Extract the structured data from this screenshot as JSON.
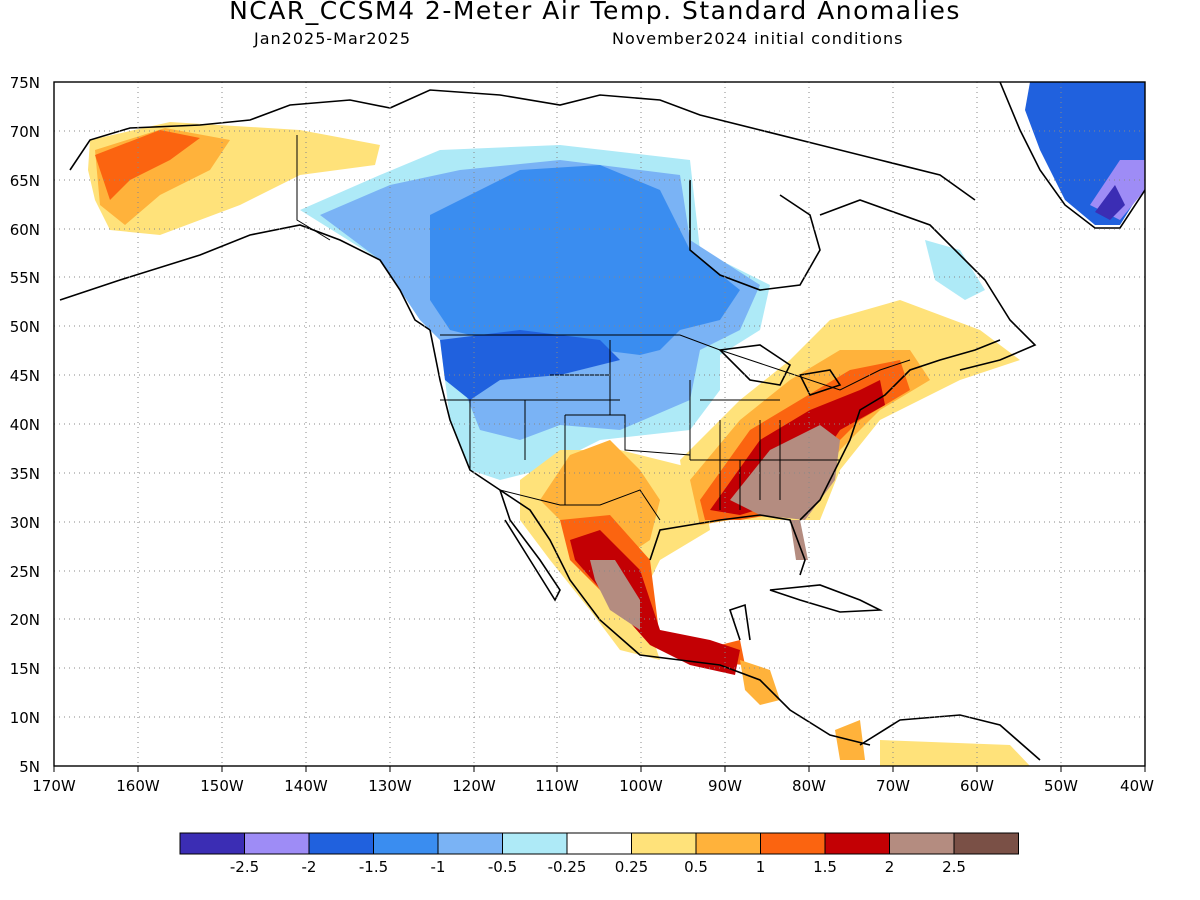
{
  "title": "NCAR_CCSM4 2-Meter Air Temp. Standard Anomalies",
  "subtitle_left": "Jan2025-Mar2025",
  "subtitle_right": "November2024 initial conditions",
  "lat_labels": [
    "75N",
    "70N",
    "65N",
    "60N",
    "55N",
    "50N",
    "45N",
    "40N",
    "35N",
    "30N",
    "25N",
    "20N",
    "15N",
    "10N",
    "5N"
  ],
  "lon_labels": [
    "170W",
    "160W",
    "150W",
    "140W",
    "130W",
    "120W",
    "110W",
    "100W",
    "90W",
    "80W",
    "70W",
    "60W",
    "50W",
    "40W"
  ],
  "colorbar": {
    "colors": [
      "#3b2db4",
      "#9e8cf6",
      "#2061de",
      "#3a8df0",
      "#7ab3f5",
      "#aeeaf7",
      "#ffffff",
      "#ffe27a",
      "#ffb23b",
      "#fb6410",
      "#c30004",
      "#b48c80",
      "#7a5046"
    ],
    "labels": [
      "-2.5",
      "-2",
      "-1.5",
      "-1",
      "-0.5",
      "-0.25",
      "0.25",
      "0.5",
      "1",
      "1.5",
      "2",
      "2.5"
    ]
  }
}
